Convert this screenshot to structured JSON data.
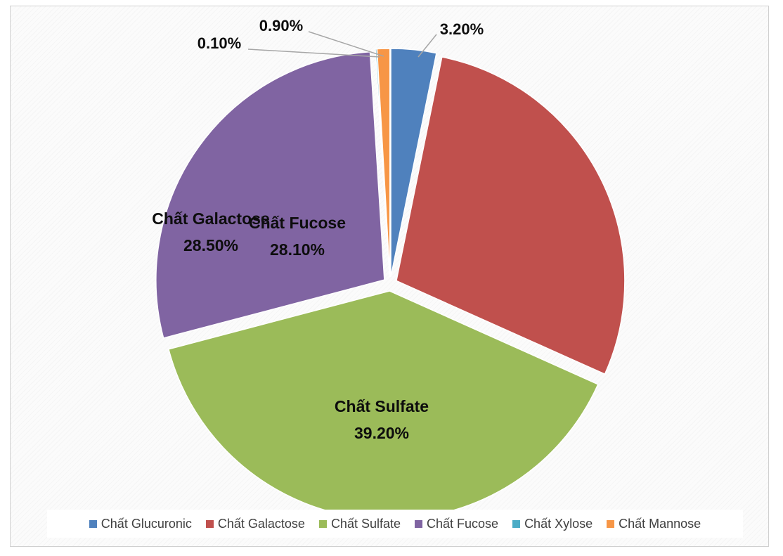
{
  "chart_data": {
    "type": "pie",
    "title": "",
    "slices": [
      {
        "name": "Chất Glucuronic",
        "value": 3.2,
        "label": "3.20%",
        "color": "#4f81bd"
      },
      {
        "name": "Chất Galactose",
        "value": 28.5,
        "label": "28.50%",
        "color": "#c0504d"
      },
      {
        "name": "Chất Sulfate",
        "value": 39.2,
        "label": "39.20%",
        "color": "#9bbb59"
      },
      {
        "name": "Chất Fucose",
        "value": 28.1,
        "label": "28.10%",
        "color": "#8064a2"
      },
      {
        "name": "Chất Xylose",
        "value": 0.1,
        "label": "0.10%",
        "color": "#4bacc6"
      },
      {
        "name": "Chất Mannose",
        "value": 0.9,
        "label": "0.90%",
        "color": "#f79646"
      }
    ],
    "legend": {
      "position": "bottom"
    },
    "exploded": true
  }
}
